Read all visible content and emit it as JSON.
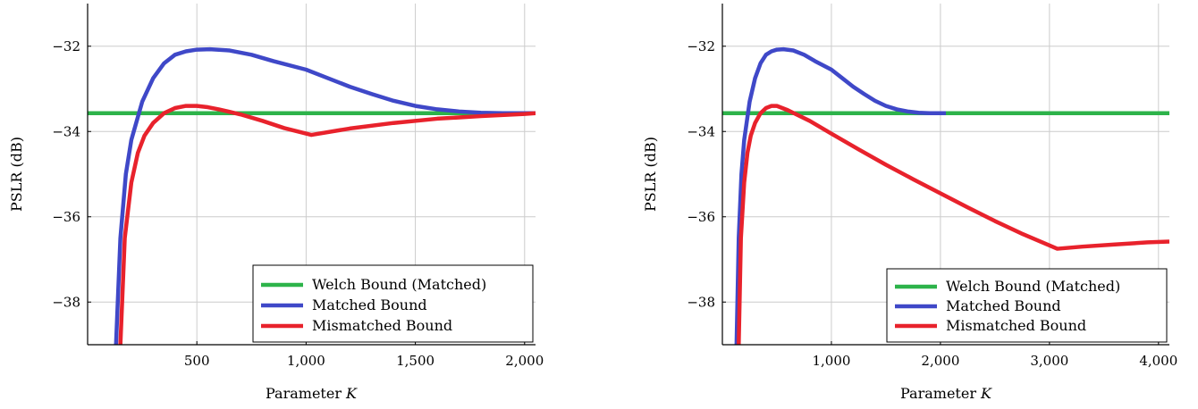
{
  "chart_data": [
    {
      "type": "line",
      "xlabel": "Parameter ",
      "xlabel_var": "K",
      "ylabel": "PSLR (dB)",
      "xlim": [
        0,
        2050
      ],
      "ylim": [
        -39,
        -31
      ],
      "xticks": [
        500,
        1000,
        1500,
        2000
      ],
      "xtick_labels": [
        "500",
        "1,000",
        "1,500",
        "2,000"
      ],
      "yticks": [
        -32,
        -34,
        -36,
        -38
      ],
      "ytick_labels": [
        "−32",
        "−34",
        "−36",
        "−38"
      ],
      "grid": true,
      "legend_position": "bottom-right",
      "series": [
        {
          "name": "Welch Bound (Matched)",
          "color": "#2db34a",
          "points": [
            [
              0,
              -33.57
            ],
            [
              2050,
              -33.57
            ]
          ]
        },
        {
          "name": "Matched Bound",
          "color": "#3f48c8",
          "points": [
            [
              130,
              -39
            ],
            [
              150,
              -36.5
            ],
            [
              175,
              -35
            ],
            [
              200,
              -34.2
            ],
            [
              250,
              -33.3
            ],
            [
              300,
              -32.75
            ],
            [
              350,
              -32.4
            ],
            [
              400,
              -32.2
            ],
            [
              450,
              -32.12
            ],
            [
              500,
              -32.08
            ],
            [
              560,
              -32.07
            ],
            [
              650,
              -32.1
            ],
            [
              750,
              -32.2
            ],
            [
              850,
              -32.35
            ],
            [
              1000,
              -32.55
            ],
            [
              1100,
              -32.75
            ],
            [
              1200,
              -32.95
            ],
            [
              1300,
              -33.12
            ],
            [
              1400,
              -33.28
            ],
            [
              1500,
              -33.4
            ],
            [
              1600,
              -33.48
            ],
            [
              1700,
              -33.53
            ],
            [
              1800,
              -33.56
            ],
            [
              1900,
              -33.57
            ],
            [
              2050,
              -33.57
            ]
          ]
        },
        {
          "name": "Mismatched Bound",
          "color": "#e8222c",
          "points": [
            [
              150,
              -39
            ],
            [
              170,
              -36.5
            ],
            [
              200,
              -35.2
            ],
            [
              230,
              -34.5
            ],
            [
              260,
              -34.1
            ],
            [
              300,
              -33.8
            ],
            [
              350,
              -33.57
            ],
            [
              400,
              -33.45
            ],
            [
              450,
              -33.4
            ],
            [
              500,
              -33.4
            ],
            [
              550,
              -33.43
            ],
            [
              600,
              -33.48
            ],
            [
              700,
              -33.6
            ],
            [
              800,
              -33.75
            ],
            [
              900,
              -33.92
            ],
            [
              1024,
              -34.08
            ],
            [
              1200,
              -33.93
            ],
            [
              1400,
              -33.8
            ],
            [
              1600,
              -33.7
            ],
            [
              1800,
              -33.64
            ],
            [
              2000,
              -33.59
            ],
            [
              2050,
              -33.57
            ]
          ]
        }
      ]
    },
    {
      "type": "line",
      "xlabel": "Parameter ",
      "xlabel_var": "K",
      "ylabel": "PSLR (dB)",
      "xlim": [
        0,
        4100
      ],
      "ylim": [
        -39,
        -31
      ],
      "xticks": [
        1000,
        2000,
        3000,
        4000
      ],
      "xtick_labels": [
        "1,000",
        "2,000",
        "3,000",
        "4,000"
      ],
      "yticks": [
        -32,
        -34,
        -36,
        -38
      ],
      "ytick_labels": [
        "−32",
        "−34",
        "−36",
        "−38"
      ],
      "grid": true,
      "legend_position": "bottom-right",
      "series": [
        {
          "name": "Welch Bound (Matched)",
          "color": "#2db34a",
          "points": [
            [
              0,
              -33.57
            ],
            [
              4100,
              -33.57
            ]
          ]
        },
        {
          "name": "Matched Bound",
          "color": "#3f48c8",
          "points": [
            [
              130,
              -39
            ],
            [
              150,
              -36.5
            ],
            [
              175,
              -35
            ],
            [
              200,
              -34.2
            ],
            [
              250,
              -33.3
            ],
            [
              300,
              -32.75
            ],
            [
              350,
              -32.4
            ],
            [
              400,
              -32.2
            ],
            [
              450,
              -32.12
            ],
            [
              500,
              -32.08
            ],
            [
              560,
              -32.07
            ],
            [
              650,
              -32.1
            ],
            [
              750,
              -32.2
            ],
            [
              850,
              -32.35
            ],
            [
              1000,
              -32.55
            ],
            [
              1100,
              -32.75
            ],
            [
              1200,
              -32.95
            ],
            [
              1300,
              -33.12
            ],
            [
              1400,
              -33.28
            ],
            [
              1500,
              -33.4
            ],
            [
              1600,
              -33.48
            ],
            [
              1700,
              -33.53
            ],
            [
              1800,
              -33.56
            ],
            [
              1900,
              -33.57
            ],
            [
              2050,
              -33.57
            ]
          ]
        },
        {
          "name": "Mismatched Bound",
          "color": "#e8222c",
          "points": [
            [
              150,
              -39
            ],
            [
              170,
              -36.5
            ],
            [
              200,
              -35.2
            ],
            [
              230,
              -34.5
            ],
            [
              260,
              -34.1
            ],
            [
              300,
              -33.8
            ],
            [
              350,
              -33.57
            ],
            [
              400,
              -33.45
            ],
            [
              450,
              -33.4
            ],
            [
              500,
              -33.4
            ],
            [
              600,
              -33.5
            ],
            [
              800,
              -33.75
            ],
            [
              1000,
              -34.05
            ],
            [
              1250,
              -34.42
            ],
            [
              1500,
              -34.78
            ],
            [
              1750,
              -35.12
            ],
            [
              2000,
              -35.45
            ],
            [
              2250,
              -35.78
            ],
            [
              2500,
              -36.1
            ],
            [
              2750,
              -36.4
            ],
            [
              3072,
              -36.75
            ],
            [
              3300,
              -36.7
            ],
            [
              3600,
              -36.65
            ],
            [
              3900,
              -36.6
            ],
            [
              4100,
              -36.58
            ]
          ]
        }
      ]
    }
  ]
}
